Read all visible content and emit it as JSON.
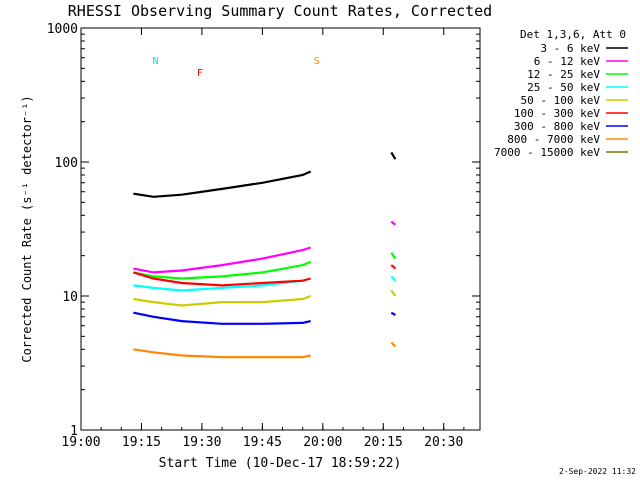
{
  "chart_data": {
    "type": "line",
    "title": "RHESSI Observing Summary Count Rates, Corrected",
    "xlabel": "Start Time (10-Dec-17 18:59:22)",
    "ylabel": "Corrected Count Rate (s⁻¹ detector⁻¹)",
    "date_stamp": "2-Sep-2022 11:32",
    "y_scale": "log",
    "ylim": [
      1,
      1000
    ],
    "xlim": [
      "19:00",
      "20:39"
    ],
    "x_ticks": [
      "19:00",
      "19:15",
      "19:30",
      "19:45",
      "20:00",
      "20:15",
      "20:30"
    ],
    "y_ticks": [
      "1",
      "10",
      "100",
      "1000"
    ],
    "legend": {
      "title": "Det 1,3,6, Att 0",
      "placement": "right"
    },
    "series": [
      {
        "name": "3 - 6 keV",
        "color": "#000000",
        "x": [
          "19:13",
          "19:18",
          "19:25",
          "19:35",
          "19:45",
          "19:55",
          "19:57",
          "20:17",
          "20:18"
        ],
        "values": [
          58,
          55,
          57,
          63,
          70,
          80,
          85,
          118,
          105
        ]
      },
      {
        "name": "6 - 12 keV",
        "color": "#ff00ff",
        "x": [
          "19:13",
          "19:18",
          "19:25",
          "19:35",
          "19:45",
          "19:55",
          "19:57",
          "20:17",
          "20:18"
        ],
        "values": [
          16,
          15,
          15.5,
          17,
          19,
          22,
          23,
          36,
          34
        ]
      },
      {
        "name": "12 - 25 keV",
        "color": "#00ff00",
        "x": [
          "19:13",
          "19:18",
          "19:25",
          "19:35",
          "19:45",
          "19:55",
          "19:57",
          "20:17",
          "20:18"
        ],
        "values": [
          15,
          14,
          13.5,
          14,
          15,
          17,
          18,
          21,
          19
        ]
      },
      {
        "name": "25 - 50 keV",
        "color": "#00ffff",
        "x": [
          "19:13",
          "19:18",
          "19:25",
          "19:35",
          "19:45",
          "19:55",
          "19:57",
          "20:17",
          "20:18"
        ],
        "values": [
          12,
          11.5,
          11,
          11.5,
          12,
          13,
          13.5,
          14,
          13
        ]
      },
      {
        "name": "50 - 100 keV",
        "color": "#cccc00",
        "x": [
          "19:13",
          "19:18",
          "19:25",
          "19:35",
          "19:45",
          "19:55",
          "19:57",
          "20:17",
          "20:18"
        ],
        "values": [
          9.5,
          9,
          8.5,
          9,
          9,
          9.5,
          10,
          11,
          10
        ]
      },
      {
        "name": "100 - 300 keV",
        "color": "#ff0000",
        "x": [
          "19:13",
          "19:18",
          "19:25",
          "19:35",
          "19:45",
          "19:55",
          "19:57",
          "20:17",
          "20:18"
        ],
        "values": [
          15,
          13.5,
          12.5,
          12,
          12.5,
          13,
          13.5,
          17,
          16
        ]
      },
      {
        "name": "300 - 800 keV",
        "color": "#0000ff",
        "x": [
          "19:13",
          "19:18",
          "19:25",
          "19:35",
          "19:45",
          "19:55",
          "19:57",
          "20:17",
          "20:18"
        ],
        "values": [
          7.5,
          7,
          6.5,
          6.2,
          6.2,
          6.3,
          6.5,
          7.5,
          7.2
        ]
      },
      {
        "name": "800 - 7000 keV",
        "color": "#ff8800",
        "x": [
          "19:13",
          "19:18",
          "19:25",
          "19:35",
          "19:45",
          "19:55",
          "19:57",
          "20:17",
          "20:18"
        ],
        "values": [
          4,
          3.8,
          3.6,
          3.5,
          3.5,
          3.5,
          3.6,
          4.5,
          4.2
        ]
      },
      {
        "name": "7000 - 15000 keV",
        "color": "#777700",
        "x": [],
        "values": []
      }
    ],
    "annotations": [
      {
        "label": "N",
        "color": "#00e0ff",
        "x": "19:17"
      },
      {
        "label": "F",
        "color": "#ff0000",
        "x": "19:28"
      },
      {
        "label": "S",
        "color": "#ff8800",
        "x": "19:57"
      }
    ]
  }
}
